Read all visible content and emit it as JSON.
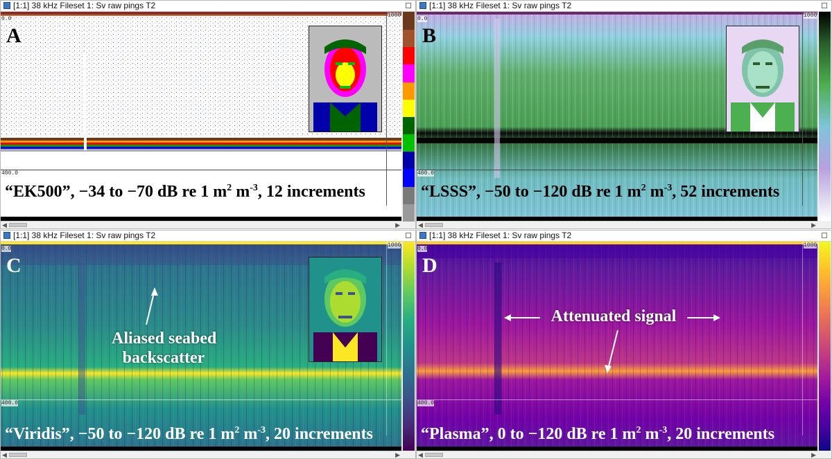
{
  "panels": [
    {
      "id": "A",
      "window_title": "[1:1] 38 kHz Fileset 1: Sv raw pings T2",
      "letter": "A",
      "palette_name": "“EK500”",
      "caption_before_sup": "“EK500”, −34 to −70 dB re 1 m",
      "caption_mid": " m",
      "caption_end": ", 12 increments",
      "sup1": "2",
      "sup2": "-3",
      "depth_top": "0.0",
      "depth_bottom": "400.0",
      "ping_label": "1000"
    },
    {
      "id": "B",
      "window_title": "[1:1] 38 kHz Fileset 1: Sv raw pings T2",
      "letter": "B",
      "caption_before_sup": "“LSSS”, −50 to −120 dB re 1 m",
      "caption_mid": " m",
      "caption_end": ", 52 increments",
      "sup1": "2",
      "sup2": "-3",
      "depth_top": "0.0",
      "depth_bottom": "400.0",
      "ping_label": "1000"
    },
    {
      "id": "C",
      "window_title": "[1:1] 38 kHz Fileset 1: Sv raw pings T2",
      "letter": "C",
      "caption_before_sup": "“Viridis”, −50 to −120 dB re 1 m",
      "caption_mid": " m",
      "caption_end": ", 20 increments",
      "sup1": "2",
      "sup2": "-3",
      "depth_top": "0.0",
      "depth_bottom": "400.0",
      "ping_label": "1000",
      "annotation": "Aliased seabed\nbackscatter",
      "annotation_line1": "Aliased seabed",
      "annotation_line2": "backscatter"
    },
    {
      "id": "D",
      "window_title": "[1:1] 38 kHz Fileset 1: Sv raw pings T2",
      "letter": "D",
      "caption_before_sup": "“Plasma”, 0 to −120 dB re 1 m",
      "caption_mid": " m",
      "caption_end": ", 20 increments",
      "sup1": "2",
      "sup2": "-3",
      "depth_top": "0.0",
      "depth_bottom": "400.0",
      "ping_label": "1000",
      "annotation": "Attenuated signal"
    }
  ],
  "colors": {
    "ek500_scale": [
      "#9a9a9a",
      "#7a7a7a",
      "#0000ff",
      "#0000aa",
      "#00c000",
      "#006400",
      "#ffff00",
      "#ff9900",
      "#ff00ff",
      "#ff0000",
      "#a0522d",
      "#6b3a1e"
    ],
    "viridis_scale": [
      "#440154",
      "#472d7b",
      "#3b528b",
      "#2c728e",
      "#21918c",
      "#28ae80",
      "#5ec962",
      "#addc30",
      "#fde725"
    ],
    "plasma_scale": [
      "#0d0887",
      "#46039f",
      "#7201a8",
      "#9c179e",
      "#bd3786",
      "#d8576b",
      "#ed7953",
      "#fb9f3a",
      "#fdca26",
      "#f0f921"
    ],
    "lsss_scale": [
      "#000000",
      "#2a5d2a",
      "#4caf50",
      "#7fc4d8",
      "#b8a0e0",
      "#e0d8f0",
      "#ffffff"
    ]
  }
}
